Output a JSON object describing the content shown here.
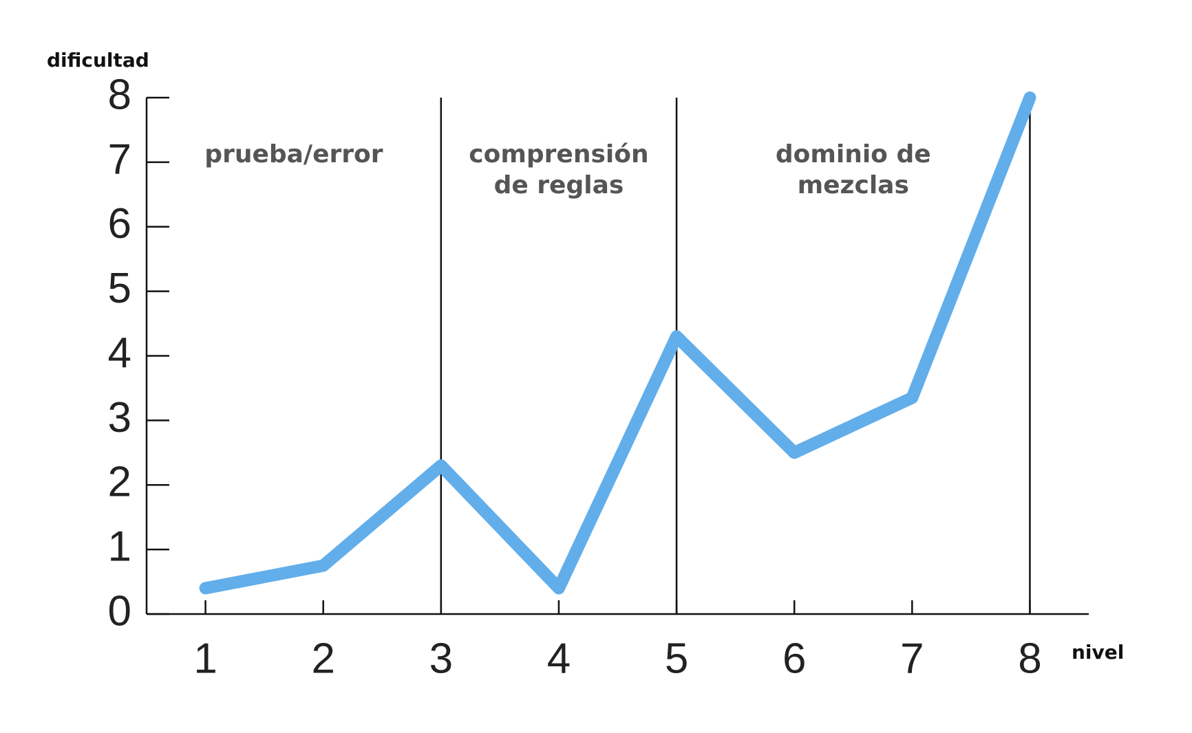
{
  "chart_data": {
    "type": "line",
    "ylabel": "dificultad",
    "xlabel": "nivel",
    "x": [
      1,
      2,
      3,
      4,
      5,
      6,
      7,
      8
    ],
    "series": [
      {
        "name": "dificultad",
        "color": "#62aeea",
        "values": [
          0.4,
          0.75,
          2.3,
          0.4,
          4.3,
          2.5,
          3.35,
          8
        ]
      }
    ],
    "xlim": [
      0.5,
      8.5
    ],
    "xticks": [
      1,
      2,
      3,
      4,
      5,
      6,
      7,
      8
    ],
    "ylim": [
      0,
      8
    ],
    "yticks": [
      0,
      1,
      2,
      3,
      4,
      5,
      6,
      7,
      8
    ],
    "vlines": [
      3,
      5,
      8
    ],
    "annotations": [
      [
        "prueba/error"
      ],
      [
        "comprensión",
        "de reglas"
      ],
      [
        "dominio de",
        "mezclas"
      ]
    ]
  }
}
